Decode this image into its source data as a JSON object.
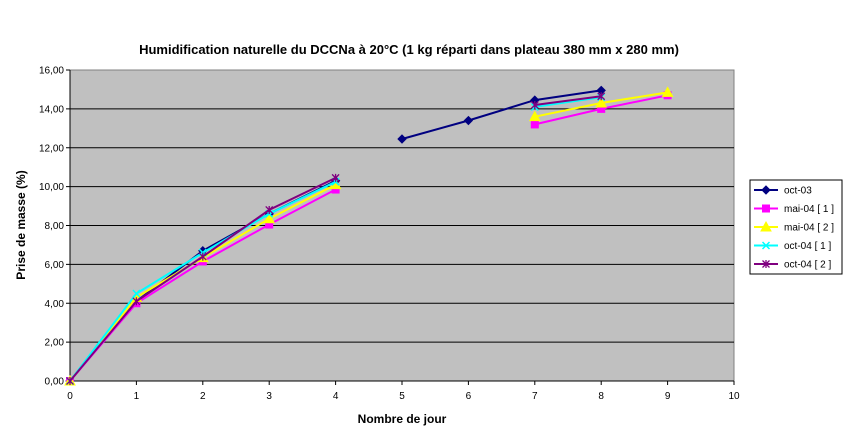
{
  "chart_data": {
    "type": "line",
    "title": "Humidification naturelle du DCCNa à 20°C (1 kg réparti dans plateau 380 mm x 280 mm)",
    "xlabel": "Nombre de jour",
    "ylabel": "Prise de masse (%)",
    "xlim": [
      0,
      10
    ],
    "ylim": [
      0,
      16
    ],
    "x_ticks": [
      "0",
      "1",
      "2",
      "3",
      "4",
      "5",
      "6",
      "7",
      "8",
      "9",
      "10"
    ],
    "y_ticks": [
      "0,00",
      "2,00",
      "4,00",
      "6,00",
      "8,00",
      "10,00",
      "12,00",
      "14,00",
      "16,00"
    ],
    "grid": "horizontal",
    "legend_position": "right",
    "plot_background": "#c0c0c0",
    "series": [
      {
        "name": "oct-03",
        "color": "#000080",
        "marker": "diamond",
        "segments": [
          [
            [
              0,
              0.0
            ],
            [
              1,
              4.1
            ],
            [
              2,
              6.7
            ],
            [
              3,
              8.6
            ],
            [
              4,
              10.3
            ]
          ],
          [
            [
              5,
              12.45
            ],
            [
              6,
              13.4
            ],
            [
              7,
              14.45
            ],
            [
              8,
              14.95
            ]
          ]
        ]
      },
      {
        "name": "mai-04 [ 1 ]",
        "color": "#ff00ff",
        "marker": "square",
        "segments": [
          [
            [
              0,
              0.0
            ],
            [
              1,
              4.0
            ],
            [
              2,
              6.15
            ],
            [
              3,
              8.05
            ],
            [
              4,
              9.85
            ]
          ],
          [
            [
              7,
              13.2
            ],
            [
              8,
              14.0
            ],
            [
              9,
              14.7
            ]
          ]
        ]
      },
      {
        "name": "mai-04 [ 2 ]",
        "color": "#ffff00",
        "marker": "triangle",
        "segments": [
          [
            [
              0,
              0.0
            ],
            [
              1,
              4.3
            ],
            [
              2,
              6.35
            ],
            [
              3,
              8.35
            ],
            [
              4,
              10.1
            ]
          ],
          [
            [
              7,
              13.6
            ],
            [
              8,
              14.3
            ],
            [
              9,
              14.85
            ]
          ]
        ]
      },
      {
        "name": "oct-04 [ 1 ]",
        "color": "#00ffff",
        "marker": "x",
        "segments": [
          [
            [
              0,
              0.0
            ],
            [
              1,
              4.5
            ],
            [
              2,
              6.6
            ],
            [
              3,
              8.6
            ],
            [
              4,
              10.25
            ]
          ],
          [
            [
              7,
              14.1
            ],
            [
              8,
              14.6
            ]
          ]
        ]
      },
      {
        "name": "oct-04 [ 2 ]",
        "color": "#800080",
        "marker": "star",
        "segments": [
          [
            [
              0,
              0.0
            ],
            [
              1,
              4.1
            ],
            [
              2,
              6.4
            ],
            [
              3,
              8.8
            ],
            [
              4,
              10.45
            ]
          ],
          [
            [
              7,
              14.2
            ],
            [
              8,
              14.65
            ]
          ]
        ]
      }
    ]
  }
}
